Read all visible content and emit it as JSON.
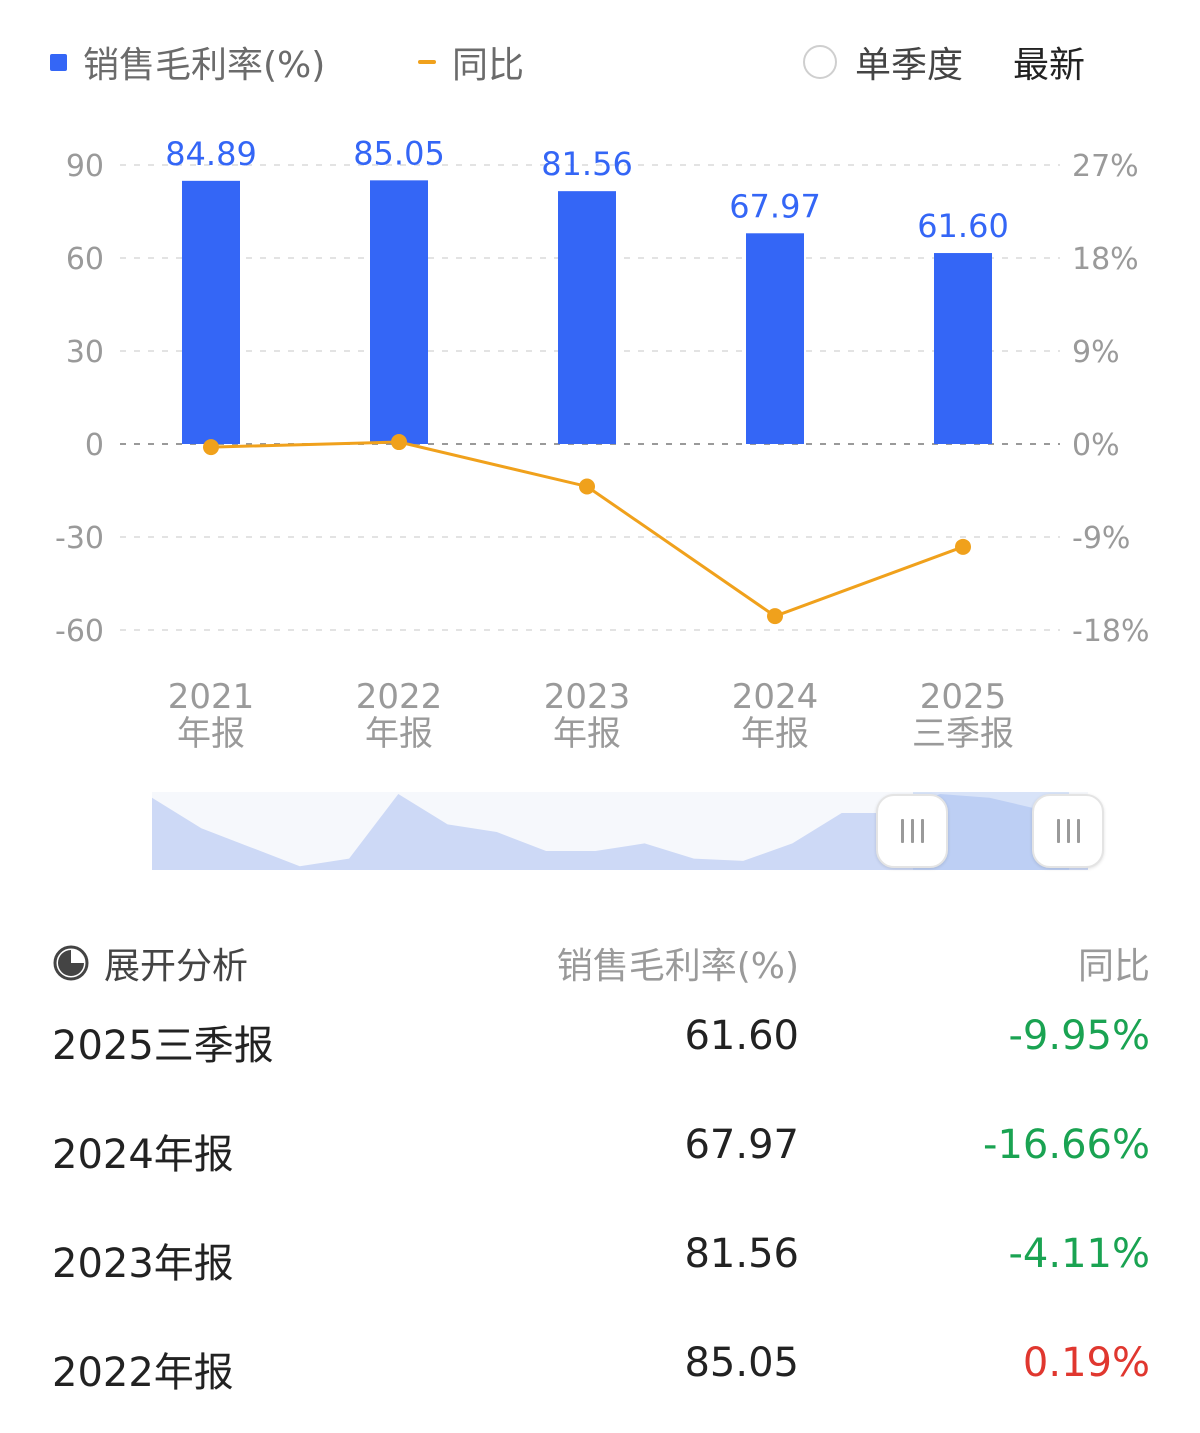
{
  "legend": {
    "bar_label": "销售毛利率(%)",
    "line_label": "同比",
    "toggle_label": "单季度",
    "latest_label": "最新"
  },
  "colors": {
    "bar": "#3466f6",
    "line": "#f0a11c",
    "negative": "#1aa352",
    "positive": "#e0372f"
  },
  "chart_data": {
    "type": "bar",
    "categories": [
      "2021\n年报",
      "2022\n年报",
      "2023\n年报",
      "2024\n年报",
      "2025\n三季报"
    ],
    "series": [
      {
        "name": "销售毛利率(%)",
        "type": "bar",
        "axis": "left",
        "values": [
          84.89,
          85.05,
          81.56,
          67.97,
          61.6
        ],
        "labels": [
          "84.89",
          "85.05",
          "81.56",
          "67.97",
          "61.60"
        ]
      },
      {
        "name": "同比",
        "type": "line",
        "axis": "right",
        "values": [
          -0.3,
          0.19,
          -4.11,
          -16.66,
          -9.95
        ]
      }
    ],
    "left_axis": {
      "ticks": [
        90,
        60,
        30,
        0,
        -30,
        -60
      ],
      "labels": [
        "90",
        "60",
        "30",
        "0",
        "-30",
        "-60"
      ],
      "ylim": [
        -60,
        90
      ]
    },
    "right_axis": {
      "ticks": [
        27,
        18,
        9,
        0,
        -9,
        -18
      ],
      "labels": [
        "27%",
        "18%",
        "9%",
        "0%",
        "-9%",
        "-18%"
      ],
      "ylim": [
        -18,
        27
      ]
    },
    "grid": true,
    "legend_position": "top-left"
  },
  "overview_series": [
    0.95,
    0.55,
    0.3,
    0.05,
    0.15,
    1.0,
    0.6,
    0.5,
    0.25,
    0.25,
    0.35,
    0.15,
    0.12,
    0.35,
    0.75,
    0.75,
    1.0,
    0.95,
    0.8,
    0.3
  ],
  "table": {
    "header": {
      "expand_label": "展开分析",
      "value_label": "销售毛利率(%)",
      "yoy_label": "同比"
    },
    "rows": [
      {
        "period": "2025三季报",
        "value": "61.60",
        "yoy": "-9.95%",
        "sign": "neg"
      },
      {
        "period": "2024年报",
        "value": "67.97",
        "yoy": "-16.66%",
        "sign": "neg"
      },
      {
        "period": "2023年报",
        "value": "81.56",
        "yoy": "-4.11%",
        "sign": "neg"
      },
      {
        "period": "2022年报",
        "value": "85.05",
        "yoy": "0.19%",
        "sign": "pos"
      }
    ]
  }
}
